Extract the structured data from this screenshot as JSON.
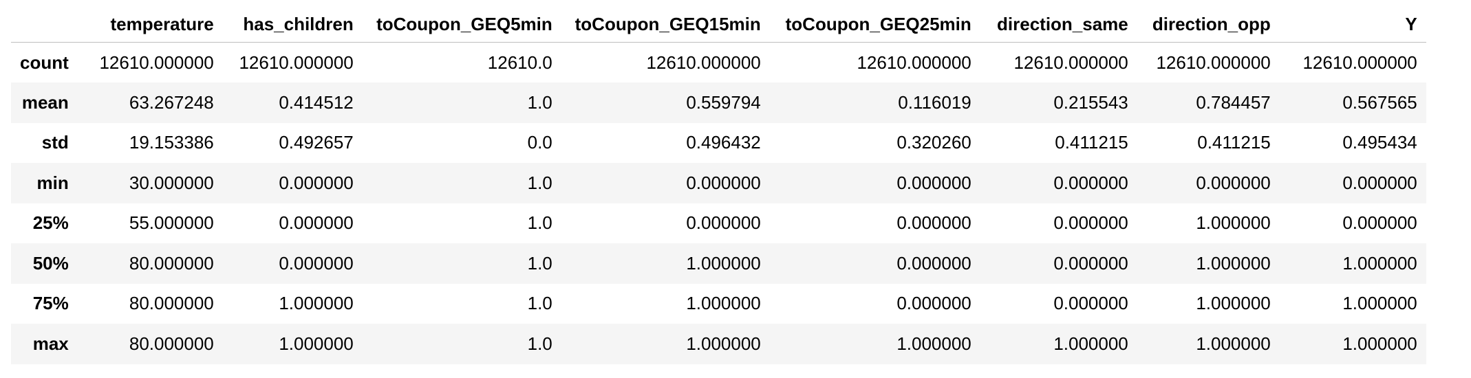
{
  "table": {
    "columns": [
      "",
      "temperature",
      "has_children",
      "toCoupon_GEQ5min",
      "toCoupon_GEQ15min",
      "toCoupon_GEQ25min",
      "direction_same",
      "direction_opp",
      "Y"
    ],
    "rows": [
      {
        "label": "count",
        "values": [
          "12610.000000",
          "12610.000000",
          "12610.0",
          "12610.000000",
          "12610.000000",
          "12610.000000",
          "12610.000000",
          "12610.000000"
        ]
      },
      {
        "label": "mean",
        "values": [
          "63.267248",
          "0.414512",
          "1.0",
          "0.559794",
          "0.116019",
          "0.215543",
          "0.784457",
          "0.567565"
        ]
      },
      {
        "label": "std",
        "values": [
          "19.153386",
          "0.492657",
          "0.0",
          "0.496432",
          "0.320260",
          "0.411215",
          "0.411215",
          "0.495434"
        ]
      },
      {
        "label": "min",
        "values": [
          "30.000000",
          "0.000000",
          "1.0",
          "0.000000",
          "0.000000",
          "0.000000",
          "0.000000",
          "0.000000"
        ]
      },
      {
        "label": "25%",
        "values": [
          "55.000000",
          "0.000000",
          "1.0",
          "0.000000",
          "0.000000",
          "0.000000",
          "1.000000",
          "0.000000"
        ]
      },
      {
        "label": "50%",
        "values": [
          "80.000000",
          "0.000000",
          "1.0",
          "1.000000",
          "0.000000",
          "0.000000",
          "1.000000",
          "1.000000"
        ]
      },
      {
        "label": "75%",
        "values": [
          "80.000000",
          "1.000000",
          "1.0",
          "1.000000",
          "0.000000",
          "0.000000",
          "1.000000",
          "1.000000"
        ]
      },
      {
        "label": "max",
        "values": [
          "80.000000",
          "1.000000",
          "1.0",
          "1.000000",
          "1.000000",
          "1.000000",
          "1.000000",
          "1.000000"
        ]
      }
    ]
  },
  "colors": {
    "stripe": "#f5f5f5",
    "header_rule": "#bdbdbd",
    "text": "#000000"
  }
}
